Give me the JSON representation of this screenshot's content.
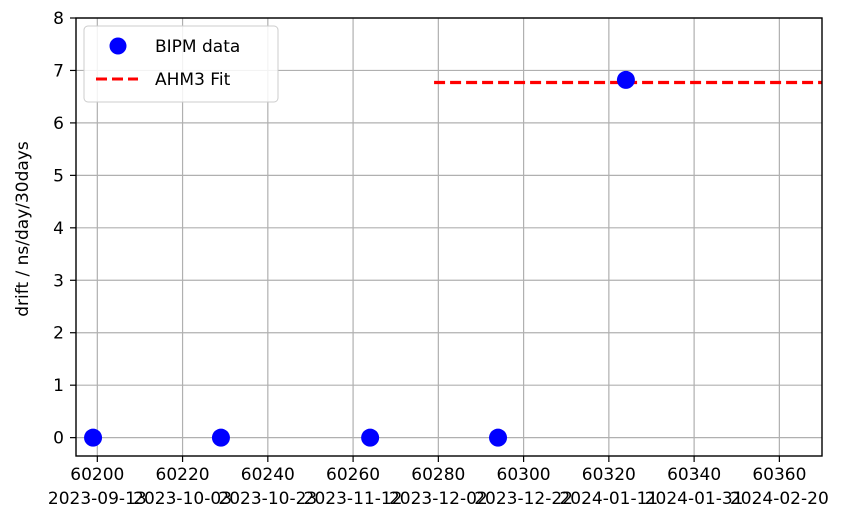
{
  "chart_data": {
    "type": "scatter",
    "ylabel": "drift / ns/day/30days",
    "xlabel": "",
    "xlim": [
      60195,
      60370
    ],
    "ylim": [
      -0.35,
      8.0
    ],
    "grid": true,
    "legend_position": "top-left",
    "x_ticks": [
      60200,
      60220,
      60240,
      60260,
      60280,
      60300,
      60320,
      60340,
      60360
    ],
    "x_tick_labels": [
      "60200",
      "60220",
      "60240",
      "60260",
      "60280",
      "60300",
      "60320",
      "60340",
      "60360"
    ],
    "x_date_labels": [
      "2023-09-13",
      "2023-10-03",
      "2023-10-23",
      "2023-11-12",
      "2023-12-02",
      "2023-12-22",
      "2024-01-11",
      "2024-01-31",
      "2024-02-20"
    ],
    "y_ticks": [
      0,
      1,
      2,
      3,
      4,
      5,
      6,
      7,
      8
    ],
    "y_tick_labels": [
      "0",
      "1",
      "2",
      "3",
      "4",
      "5",
      "6",
      "7",
      "8"
    ],
    "series": [
      {
        "name": "BIPM data",
        "kind": "scatter",
        "color": "#0000ff",
        "x": [
          60199,
          60229,
          60264,
          60294,
          60324
        ],
        "y": [
          0,
          0,
          0,
          0,
          6.82
        ]
      },
      {
        "name": "AHM3 Fit",
        "kind": "line",
        "style": "dashed",
        "color": "#ff0000",
        "x": [
          60279,
          60370
        ],
        "y": [
          6.77,
          6.77
        ]
      }
    ]
  }
}
